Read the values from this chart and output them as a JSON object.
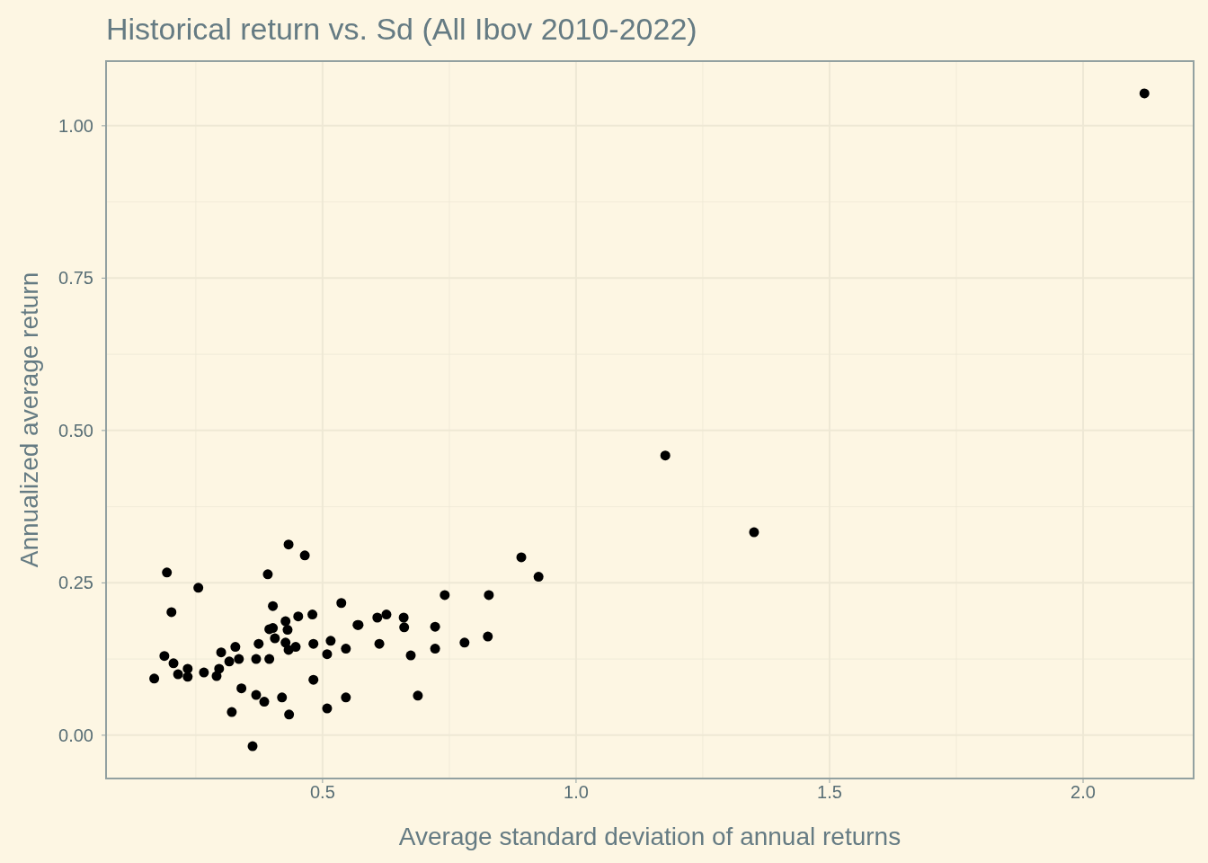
{
  "chart_data": {
    "type": "scatter",
    "title": "Historical return vs. Sd (All Ibov 2010-2022)",
    "xlabel": "Average standard deviation of annual returns",
    "ylabel": "Annualized average return",
    "xlim": [
      0.073,
      2.218
    ],
    "ylim": [
      -0.071,
      1.106
    ],
    "xticks": [
      {
        "value": 0.5,
        "label": "0.5"
      },
      {
        "value": 1,
        "label": "1.0"
      },
      {
        "value": 1.5,
        "label": "1.5"
      },
      {
        "value": 2,
        "label": "2.0"
      }
    ],
    "yticks": [
      {
        "value": 0,
        "label": "0.00"
      },
      {
        "value": 0.25,
        "label": "0.25"
      },
      {
        "value": 0.5,
        "label": "0.50"
      },
      {
        "value": 0.75,
        "label": "0.75"
      },
      {
        "value": 1,
        "label": "1.00"
      }
    ],
    "grid": true,
    "marker": "circle",
    "series": [
      {
        "color": "#000000",
        "x": [
          0.193,
          0.255,
          0.202,
          0.402,
          0.537,
          0.427,
          0.452,
          0.48,
          0.395,
          0.402,
          0.431,
          0.569,
          0.406,
          0.374,
          0.427,
          0.328,
          0.3,
          0.433,
          0.447,
          0.482,
          0.516,
          0.546,
          0.509,
          0.188,
          0.206,
          0.316,
          0.335,
          0.369,
          0.395,
          0.234,
          0.215,
          0.234,
          0.266,
          0.296,
          0.291,
          0.168,
          0.482,
          0.34,
          0.369,
          0.385,
          0.42,
          0.546,
          0.509,
          0.321,
          0.434,
          0.362,
          0.433,
          0.465,
          0.392,
          0.892,
          0.926,
          0.741,
          0.828,
          0.608,
          0.626,
          0.571,
          0.66,
          0.661,
          0.722,
          0.612,
          0.826,
          0.78,
          0.722,
          0.674,
          0.688,
          1.176,
          1.351,
          2.121
        ],
        "values": [
          0.267,
          0.242,
          0.202,
          0.212,
          0.217,
          0.187,
          0.195,
          0.198,
          0.174,
          0.176,
          0.173,
          0.181,
          0.159,
          0.15,
          0.152,
          0.145,
          0.136,
          0.14,
          0.145,
          0.15,
          0.155,
          0.142,
          0.133,
          0.13,
          0.118,
          0.121,
          0.125,
          0.125,
          0.125,
          0.109,
          0.1,
          0.096,
          0.103,
          0.109,
          0.097,
          0.093,
          0.091,
          0.077,
          0.066,
          0.055,
          0.062,
          0.062,
          0.044,
          0.038,
          0.034,
          -0.018,
          0.313,
          0.295,
          0.264,
          0.292,
          0.26,
          0.23,
          0.23,
          0.193,
          0.198,
          0.181,
          0.193,
          0.177,
          0.178,
          0.15,
          0.162,
          0.152,
          0.142,
          0.131,
          0.065,
          0.459,
          0.333,
          1.053
        ]
      }
    ]
  }
}
